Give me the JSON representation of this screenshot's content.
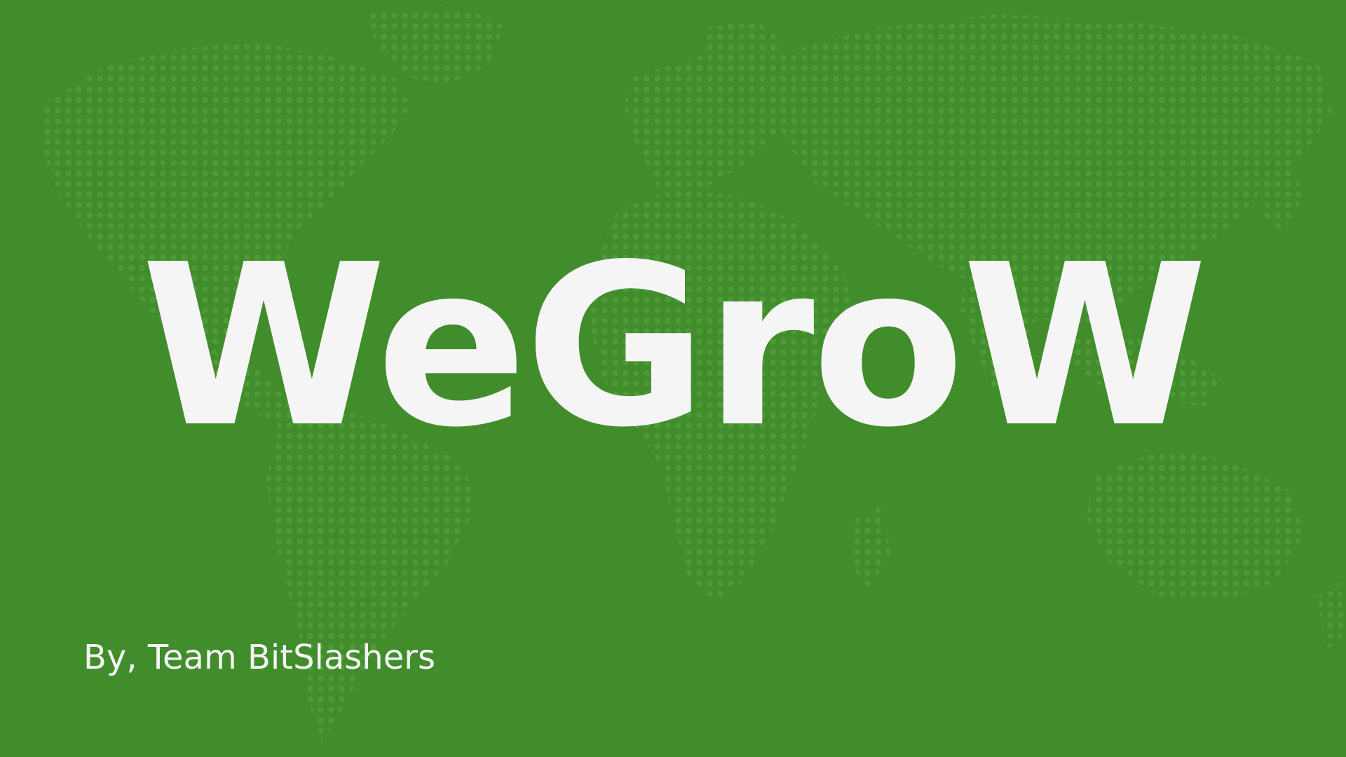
{
  "slide": {
    "title": "WeGroW",
    "byline": "By, Team BitSlashers"
  },
  "colors": {
    "background": "#418d2c",
    "map_dots": "#4e9a39",
    "text": "#f5f5f5"
  }
}
